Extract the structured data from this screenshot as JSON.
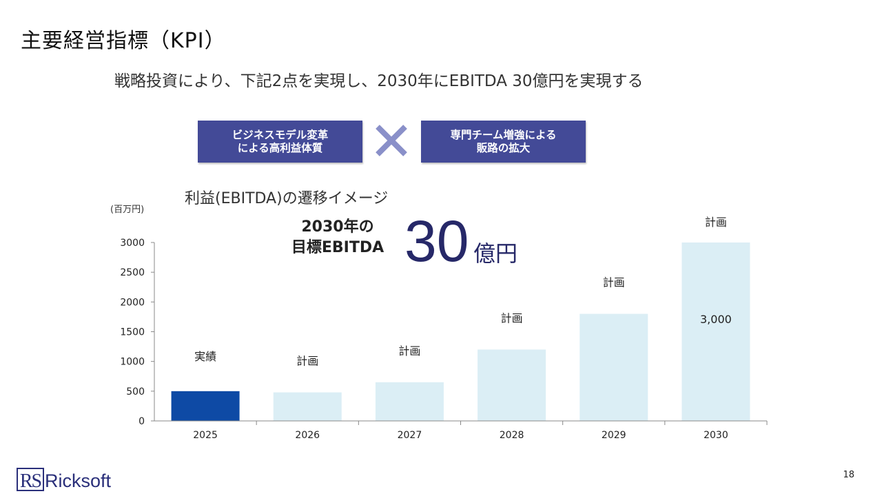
{
  "slide": {
    "title": "主要経営指標（KPI）",
    "subtitle": "戦略投資により、下記2点を実現し、2030年にEBITDA 30億円を実現する",
    "page_number": "18"
  },
  "pillars": {
    "left": [
      "ビジネスモデル変革",
      "による高利益体質"
    ],
    "right": [
      "専門チーム増強による",
      "販路の拡大"
    ],
    "connector": "×"
  },
  "target": {
    "caption": [
      "2030年の",
      "目標EBITDA"
    ],
    "number": "30",
    "unit": "億円"
  },
  "logo": {
    "mark": "RS",
    "name": "Ricksoft"
  },
  "colors": {
    "pill": "#434a97",
    "bar_actual": "#0e4aa5",
    "bar_plan": "#dbeef5",
    "target": "#262868"
  },
  "chart_data": {
    "type": "bar",
    "title": "利益(EBITDA)の遷移イメージ",
    "ylabel": "(百万円)",
    "xlabel": "",
    "categories": [
      "2025",
      "2026",
      "2027",
      "2028",
      "2029",
      "2030"
    ],
    "values": [
      500,
      480,
      650,
      1200,
      1800,
      3000
    ],
    "bar_labels": [
      "実績",
      "計画",
      "計画",
      "計画",
      "計画",
      "計画"
    ],
    "annotations": [
      {
        "category": "2030",
        "text": "3,000"
      }
    ],
    "ylim": [
      0,
      3000
    ],
    "yticks": [
      0,
      500,
      1000,
      1500,
      2000,
      2500,
      3000
    ],
    "grid": false,
    "legend": "none"
  }
}
